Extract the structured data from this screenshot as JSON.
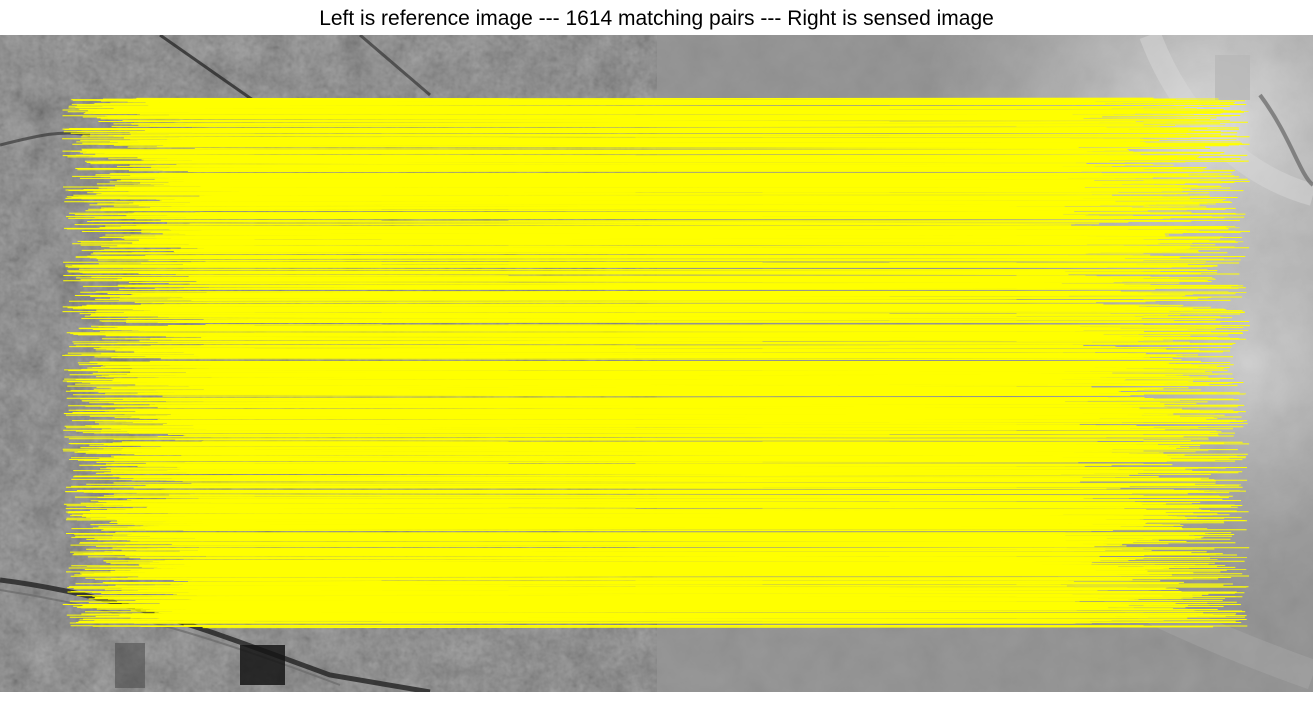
{
  "figure": {
    "title": "Left is reference image --- 1614 matching pairs --- Right is sensed image"
  },
  "images": {
    "reference": {
      "icon": "optical-satellite-image",
      "tone": "dark-gray"
    },
    "sensed": {
      "icon": "elevation-gray-image",
      "tone": "light-gray"
    }
  },
  "matches": {
    "count": 1614,
    "line_color": "#ffff00"
  }
}
